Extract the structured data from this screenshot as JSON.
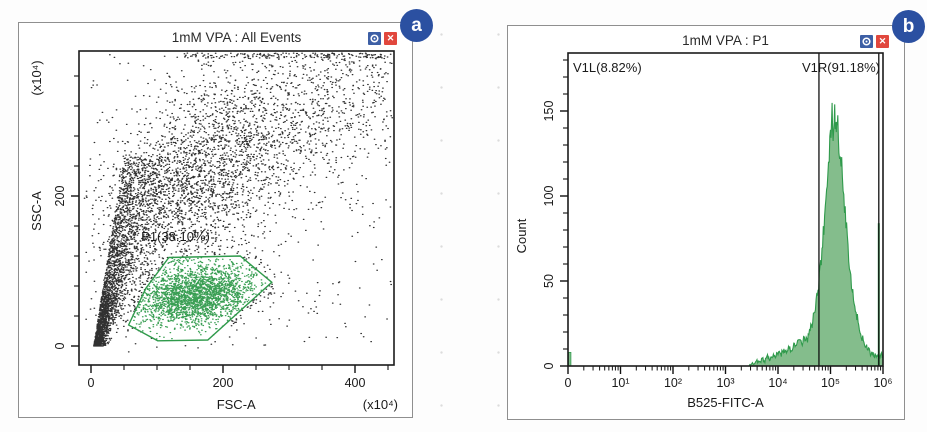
{
  "page": {
    "badges": [
      {
        "label": "a"
      },
      {
        "label": "b"
      }
    ]
  },
  "panels": [
    {
      "title": "1mM VPA : All Events",
      "settings_icon": "gear",
      "close_glyph": "✕"
    },
    {
      "title": "1mM VPA : P1",
      "settings_icon": "gear",
      "close_glyph": "✕"
    }
  ],
  "colors": {
    "gate_green": "#2f9a4b",
    "hist_fill": "#84bd8c",
    "point_black": "#141414",
    "icon_blue": "#3d5fa5",
    "icon_red": "#e1473d",
    "badge_blue": "#2b50a1"
  },
  "chart_data": [
    {
      "type": "scatter",
      "title": "1mM VPA : All Events",
      "xlabel": "FSC-A",
      "ylabel": "SSC-A",
      "x_unit": "(x10⁴)",
      "y_unit": "(x10⁴)",
      "xlim": [
        0,
        460
      ],
      "ylim": [
        0,
        393
      ],
      "xticks": [
        0,
        200,
        400
      ],
      "x_minor_step": 50,
      "yticks": [
        0,
        200
      ],
      "y_minor_step": 40,
      "grid": false,
      "point_color": "#141414",
      "gate": {
        "name": "P1",
        "percent": "38.10%",
        "label": "P1(38.10%)",
        "color": "#2f9a4b",
        "polygon": [
          [
            57,
            28
          ],
          [
            83,
            77
          ],
          [
            118,
            118
          ],
          [
            226,
            120
          ],
          [
            274,
            85
          ],
          [
            177,
            8
          ],
          [
            101,
            7
          ]
        ],
        "label_pos": [
          76,
          140
        ]
      },
      "clusters": [
        {
          "kind": "wedge",
          "n": 2800
        },
        {
          "kind": "band",
          "n": 1500,
          "x0": 60,
          "y0": 150,
          "x1": 230,
          "y1": 300,
          "sx": 45,
          "sy": 55
        },
        {
          "kind": "band",
          "n": 1700,
          "x0": 120,
          "y0": 180,
          "x1": 430,
          "y1": 380,
          "sx": 60,
          "sy": 50
        },
        {
          "kind": "top-edge",
          "n": 220
        },
        {
          "kind": "gauss",
          "n": 2500,
          "cx": 158,
          "cy": 68,
          "sx": 45,
          "sy": 20,
          "tilt": 0.12
        },
        {
          "kind": "uniform",
          "n": 300
        }
      ]
    },
    {
      "type": "histogram",
      "title": "1mM VPA : P1",
      "xlabel": "B525-FITC-A",
      "ylabel": "Count",
      "x_scale": "log",
      "x_decades": 6,
      "xtick_labels": [
        "0",
        "10¹",
        "10²",
        "10³",
        "10⁴",
        "10⁵",
        "10⁶"
      ],
      "yticks": [
        0,
        50,
        100,
        150
      ],
      "y_minor_step": 10,
      "ylim": [
        0,
        184
      ],
      "fill": "#84bd8c",
      "stroke": "#2f9a4b",
      "markers": [
        {
          "label": "V1L(8.82%)",
          "align": "left"
        },
        {
          "label": "V1R(91.18%)",
          "align": "right"
        }
      ],
      "gate_lines_decades": [
        4.78,
        5.92
      ],
      "zero_spike_count": 8,
      "edge_spike": {
        "decade": 5.92,
        "count": 84
      },
      "envelope": [
        [
          3.45,
          0
        ],
        [
          3.5,
          2
        ],
        [
          3.55,
          1
        ],
        [
          3.6,
          3
        ],
        [
          3.65,
          2
        ],
        [
          3.7,
          4
        ],
        [
          3.75,
          3
        ],
        [
          3.8,
          6
        ],
        [
          3.85,
          4
        ],
        [
          3.9,
          7
        ],
        [
          3.95,
          5
        ],
        [
          4.0,
          8
        ],
        [
          4.05,
          6
        ],
        [
          4.1,
          9
        ],
        [
          4.15,
          8
        ],
        [
          4.2,
          11
        ],
        [
          4.25,
          9
        ],
        [
          4.3,
          13
        ],
        [
          4.35,
          11
        ],
        [
          4.4,
          15
        ],
        [
          4.45,
          13
        ],
        [
          4.5,
          17
        ],
        [
          4.55,
          15
        ],
        [
          4.6,
          20
        ],
        [
          4.65,
          25
        ],
        [
          4.7,
          33
        ],
        [
          4.75,
          42
        ],
        [
          4.8,
          55
        ],
        [
          4.85,
          72
        ],
        [
          4.9,
          92
        ],
        [
          4.95,
          118
        ],
        [
          5.0,
          135
        ],
        [
          5.03,
          147
        ],
        [
          5.05,
          139
        ],
        [
          5.08,
          152
        ],
        [
          5.1,
          141
        ],
        [
          5.13,
          146
        ],
        [
          5.16,
          131
        ],
        [
          5.2,
          122
        ],
        [
          5.24,
          105
        ],
        [
          5.28,
          90
        ],
        [
          5.32,
          76
        ],
        [
          5.36,
          62
        ],
        [
          5.4,
          50
        ],
        [
          5.45,
          38
        ],
        [
          5.5,
          29
        ],
        [
          5.55,
          22
        ],
        [
          5.6,
          17
        ],
        [
          5.65,
          13
        ],
        [
          5.7,
          10
        ],
        [
          5.75,
          8
        ],
        [
          5.8,
          7
        ],
        [
          5.85,
          6
        ],
        [
          5.88,
          5
        ],
        [
          5.9,
          6
        ],
        [
          5.93,
          5
        ],
        [
          5.96,
          7
        ],
        [
          6.0,
          5
        ]
      ]
    }
  ]
}
